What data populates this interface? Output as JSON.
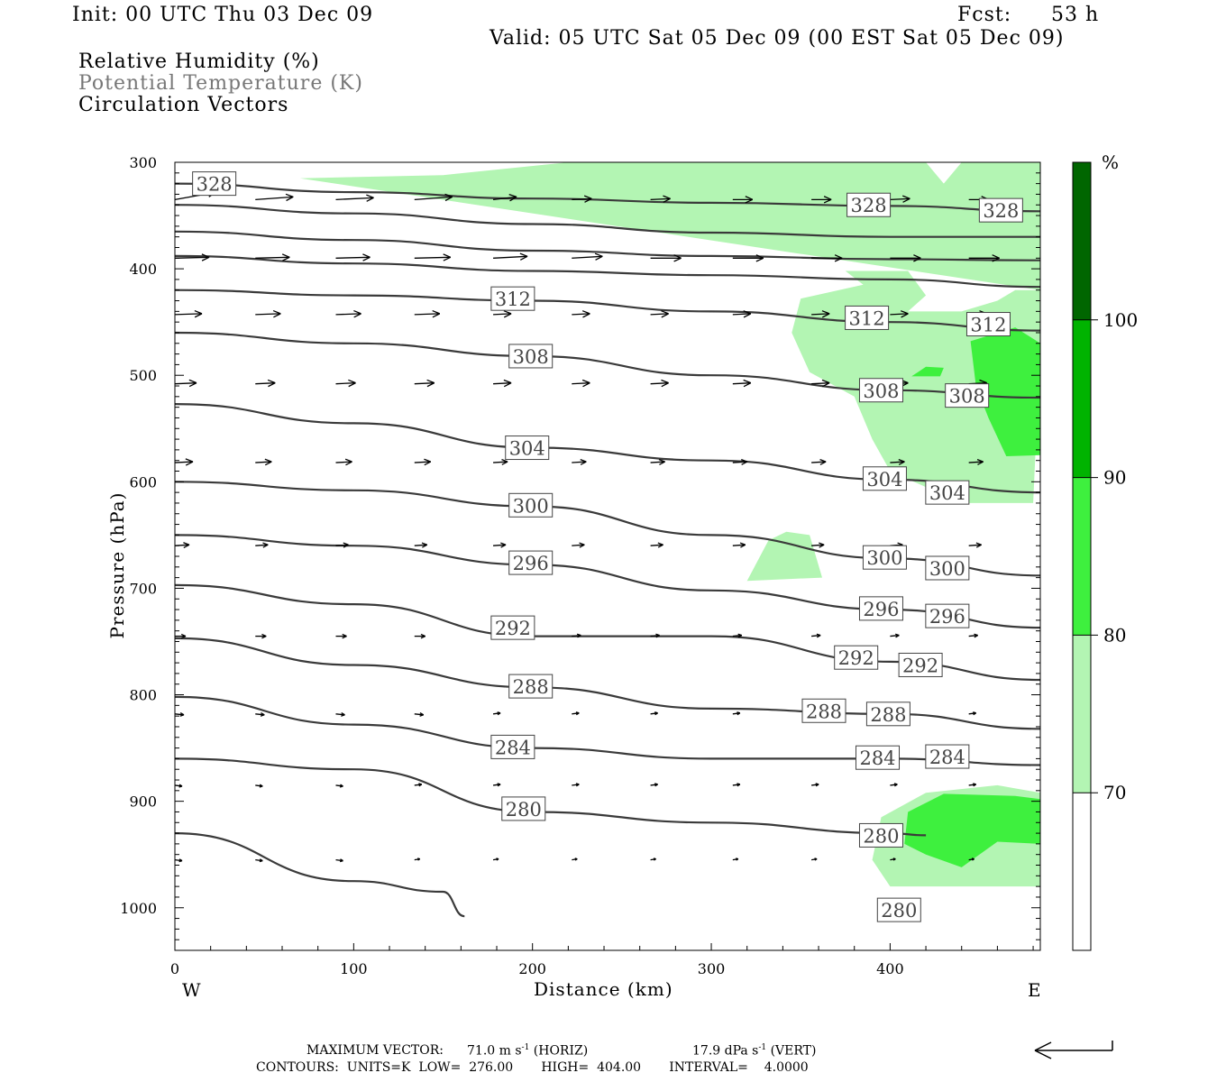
{
  "header": {
    "init": "Init: 00 UTC Thu 03 Dec 09",
    "fcst_label": "Fcst:",
    "fcst_value": "53 h",
    "valid": "Valid: 05 UTC Sat 05 Dec 09 (00 EST Sat 05 Dec 09)",
    "legend": [
      "Relative Humidity (%)",
      "Potential Temperature (K)",
      "Circulation Vectors"
    ]
  },
  "footer": {
    "maxvec_label": "MAXIMUM VECTOR:",
    "maxvec_horiz": "71.0 m s",
    "maxvec_horiz_unit": "(HORIZ)",
    "maxvec_vert": "17.9 dPa s",
    "maxvec_vert_unit": "(VERT)",
    "superscript": "-1",
    "contours": "CONTOURS:  UNITS=K  LOW=  276.00       HIGH=  404.00       INTERVAL=    4.0000"
  },
  "colors": {
    "rh_70": "#b3f5b3",
    "rh_80": "#3ef03e",
    "rh_90": "#00b300",
    "rh_100": "#006600",
    "contour": "#3a3a3a"
  },
  "chart_data": {
    "type": "contour_cross_section",
    "xlabel": "Distance (km)",
    "ylabel": "Pressure (hPa)",
    "xlim": [
      0,
      484
    ],
    "ylim": [
      300,
      1040
    ],
    "x_ticks": [
      0,
      100,
      200,
      300,
      400
    ],
    "y_ticks": [
      300,
      400,
      500,
      600,
      700,
      800,
      900,
      1000
    ],
    "x_end_labels": {
      "left": "W",
      "right": "E"
    },
    "colorbar": {
      "unit": "%",
      "levels": [
        70,
        80,
        90,
        100
      ]
    },
    "theta_contours": [
      {
        "theta": 328,
        "points": [
          [
            0,
            320
          ],
          [
            100,
            328
          ],
          [
            200,
            334
          ],
          [
            300,
            338
          ],
          [
            400,
            341
          ],
          [
            484,
            346
          ]
        ],
        "labels": [
          [
            22,
            320
          ],
          [
            388,
            340
          ],
          [
            462,
            345
          ]
        ]
      },
      {
        "theta": 324,
        "points": [
          [
            0,
            340
          ],
          [
            100,
            348
          ],
          [
            200,
            358
          ],
          [
            300,
            366
          ],
          [
            400,
            370
          ],
          [
            484,
            370
          ]
        ],
        "labels": []
      },
      {
        "theta": 320,
        "points": [
          [
            0,
            365
          ],
          [
            100,
            373
          ],
          [
            200,
            383
          ],
          [
            300,
            388
          ],
          [
            400,
            391
          ],
          [
            484,
            392
          ]
        ],
        "labels": []
      },
      {
        "theta": 316,
        "points": [
          [
            0,
            388
          ],
          [
            100,
            395
          ],
          [
            200,
            402
          ],
          [
            300,
            406
          ],
          [
            400,
            410
          ],
          [
            484,
            417
          ]
        ],
        "labels": []
      },
      {
        "theta": 312,
        "points": [
          [
            0,
            420
          ],
          [
            100,
            425
          ],
          [
            200,
            430
          ],
          [
            300,
            440
          ],
          [
            400,
            450
          ],
          [
            484,
            458
          ]
        ],
        "labels": [
          [
            189,
            428
          ],
          [
            387,
            446
          ],
          [
            455,
            452
          ]
        ]
      },
      {
        "theta": 308,
        "points": [
          [
            0,
            460
          ],
          [
            100,
            470
          ],
          [
            200,
            482
          ],
          [
            300,
            500
          ],
          [
            400,
            514
          ],
          [
            484,
            521
          ]
        ],
        "labels": [
          [
            199,
            482
          ],
          [
            395,
            514
          ],
          [
            443,
            519
          ]
        ]
      },
      {
        "theta": 304,
        "points": [
          [
            0,
            527
          ],
          [
            100,
            545
          ],
          [
            200,
            568
          ],
          [
            300,
            580
          ],
          [
            400,
            598
          ],
          [
            484,
            610
          ]
        ],
        "labels": [
          [
            197,
            568
          ],
          [
            397,
            597
          ],
          [
            432,
            610
          ]
        ]
      },
      {
        "theta": 300,
        "points": [
          [
            0,
            600
          ],
          [
            100,
            608
          ],
          [
            200,
            623
          ],
          [
            300,
            650
          ],
          [
            400,
            672
          ],
          [
            484,
            688
          ]
        ],
        "labels": [
          [
            199,
            622
          ],
          [
            397,
            671
          ],
          [
            432,
            681
          ]
        ]
      },
      {
        "theta": 296,
        "points": [
          [
            0,
            650
          ],
          [
            100,
            660
          ],
          [
            200,
            678
          ],
          [
            300,
            702
          ],
          [
            400,
            720
          ],
          [
            484,
            737
          ]
        ],
        "labels": [
          [
            199,
            676
          ],
          [
            395,
            719
          ],
          [
            432,
            726
          ]
        ]
      },
      {
        "theta": 292,
        "points": [
          [
            0,
            697
          ],
          [
            100,
            715
          ],
          [
            200,
            745
          ],
          [
            300,
            745
          ],
          [
            400,
            769
          ],
          [
            484,
            786
          ]
        ],
        "labels": [
          [
            189,
            737
          ],
          [
            381,
            765
          ],
          [
            417,
            772
          ]
        ]
      },
      {
        "theta": 288,
        "points": [
          [
            0,
            747
          ],
          [
            100,
            772
          ],
          [
            200,
            793
          ],
          [
            300,
            813
          ],
          [
            400,
            818
          ],
          [
            484,
            832
          ]
        ],
        "labels": [
          [
            199,
            792
          ],
          [
            363,
            815
          ],
          [
            399,
            818
          ]
        ]
      },
      {
        "theta": 284,
        "points": [
          [
            0,
            802
          ],
          [
            100,
            828
          ],
          [
            200,
            850
          ],
          [
            300,
            860
          ],
          [
            400,
            860
          ],
          [
            484,
            866
          ]
        ],
        "labels": [
          [
            189,
            849
          ],
          [
            393,
            859
          ],
          [
            432,
            858
          ]
        ]
      },
      {
        "theta": 280,
        "points": [
          [
            0,
            860
          ],
          [
            100,
            870
          ],
          [
            200,
            910
          ],
          [
            300,
            920
          ],
          [
            400,
            930
          ],
          [
            420,
            932
          ]
        ],
        "labels": [
          [
            195,
            907
          ],
          [
            395,
            932
          ],
          [
            405,
            1002
          ]
        ]
      },
      {
        "theta": 276,
        "points": [
          [
            0,
            930
          ],
          [
            100,
            975
          ],
          [
            150,
            985
          ],
          [
            162,
            1008
          ]
        ],
        "labels": []
      }
    ],
    "rh_regions": [
      {
        "level": "70-80",
        "polygon": [
          [
            70,
            315
          ],
          [
            150,
            312
          ],
          [
            220,
            300
          ],
          [
            420,
            300
          ],
          [
            430,
            320
          ],
          [
            440,
            300
          ],
          [
            470,
            300
          ],
          [
            484,
            300
          ],
          [
            484,
            470
          ],
          [
            480,
            620
          ],
          [
            440,
            620
          ],
          [
            400,
            590
          ],
          [
            390,
            560
          ],
          [
            380,
            520
          ],
          [
            355,
            497
          ],
          [
            345,
            460
          ],
          [
            350,
            428
          ],
          [
            385,
            415
          ],
          [
            375,
            402
          ],
          [
            410,
            402
          ],
          [
            420,
            425
          ],
          [
            410,
            440
          ],
          [
            430,
            440
          ],
          [
            440,
            440
          ],
          [
            460,
            430
          ],
          [
            470,
            420
          ],
          [
            484,
            420
          ]
        ]
      },
      {
        "level": "70-80",
        "polygon": [
          [
            320,
            693
          ],
          [
            332,
            655
          ],
          [
            342,
            647
          ],
          [
            355,
            650
          ],
          [
            362,
            690
          ]
        ]
      },
      {
        "level": "70-80",
        "polygon": [
          [
            390,
            955
          ],
          [
            395,
            915
          ],
          [
            420,
            892
          ],
          [
            460,
            885
          ],
          [
            484,
            892
          ],
          [
            484,
            980
          ],
          [
            440,
            980
          ],
          [
            400,
            980
          ]
        ]
      },
      {
        "level": "80-90",
        "polygon": [
          [
            445,
            468
          ],
          [
            470,
            455
          ],
          [
            484,
            470
          ],
          [
            484,
            575
          ],
          [
            465,
            576
          ],
          [
            455,
            540
          ],
          [
            448,
            510
          ]
        ]
      },
      {
        "level": "80-90",
        "polygon": [
          [
            412,
            501
          ],
          [
            420,
            492
          ],
          [
            430,
            493
          ],
          [
            428,
            501
          ]
        ]
      },
      {
        "level": "80-90",
        "polygon": [
          [
            408,
            940
          ],
          [
            410,
            910
          ],
          [
            430,
            893
          ],
          [
            470,
            895
          ],
          [
            484,
            898
          ],
          [
            484,
            940
          ],
          [
            460,
            938
          ],
          [
            440,
            962
          ],
          [
            420,
            950
          ]
        ]
      }
    ],
    "vectors": [
      {
        "p": 335,
        "x": [
          0,
          45,
          90,
          134,
          178,
          222,
          266,
          312,
          356,
          400,
          444
        ],
        "dx": [
          45,
          42,
          42,
          42,
          26,
          22,
          22,
          22,
          22,
          22,
          22
        ],
        "dy": [
          -8,
          -3,
          -2,
          -3,
          -3,
          -1,
          -1,
          0,
          0,
          -1,
          0
        ]
      },
      {
        "p": 390,
        "x": [
          0,
          45,
          90,
          134,
          178,
          222,
          266,
          312,
          356,
          400,
          444
        ],
        "dx": [
          38,
          38,
          38,
          40,
          38,
          34,
          34,
          34,
          34,
          34,
          34
        ],
        "dy": [
          -1,
          -1,
          -1,
          -1,
          -2,
          -2,
          0,
          0,
          0,
          0,
          0
        ]
      },
      {
        "p": 443,
        "x": [
          0,
          45,
          90,
          134,
          178,
          222,
          266,
          312,
          356,
          400,
          444
        ],
        "dx": [
          30,
          28,
          28,
          28,
          20,
          20,
          20,
          20,
          20,
          20,
          20
        ],
        "dy": [
          -1,
          -1,
          -1,
          -1,
          -1,
          -1,
          -1,
          -1,
          -1,
          -1,
          -1
        ]
      },
      {
        "p": 508,
        "x": [
          0,
          45,
          90,
          134,
          178,
          222,
          266,
          312,
          356,
          400,
          444
        ],
        "dx": [
          24,
          22,
          22,
          22,
          20,
          20,
          20,
          20,
          20,
          20,
          20
        ],
        "dy": [
          -1,
          -1,
          -1,
          -1,
          -1,
          -1,
          -1,
          -1,
          -1,
          -1,
          -1
        ]
      },
      {
        "p": 582,
        "x": [
          0,
          45,
          90,
          134,
          178,
          222,
          266,
          312,
          356,
          400,
          444
        ],
        "dx": [
          20,
          18,
          18,
          18,
          16,
          16,
          16,
          16,
          16,
          16,
          16
        ],
        "dy": [
          -1,
          -1,
          -1,
          -1,
          -1,
          -1,
          -1,
          -1,
          -1,
          -1,
          -1
        ]
      },
      {
        "p": 660,
        "x": [
          0,
          45,
          90,
          134,
          178,
          222,
          266,
          312,
          356,
          400,
          444
        ],
        "dx": [
          16,
          14,
          14,
          14,
          14,
          14,
          14,
          14,
          14,
          14,
          14
        ],
        "dy": [
          -1,
          -1,
          -1,
          -1,
          -1,
          -1,
          -1,
          -1,
          -1,
          -1,
          -1
        ]
      },
      {
        "p": 745,
        "x": [
          0,
          45,
          90,
          134,
          178,
          222,
          266,
          312,
          356,
          400,
          444
        ],
        "dx": [
          12,
          12,
          12,
          12,
          10,
          10,
          10,
          10,
          10,
          10,
          10
        ],
        "dy": [
          0,
          0,
          0,
          0,
          -1,
          -1,
          -1,
          -1,
          -1,
          -1,
          -1
        ]
      },
      {
        "p": 818,
        "x": [
          0,
          45,
          90,
          134,
          178,
          222,
          266,
          312,
          356,
          400,
          444
        ],
        "dx": [
          10,
          10,
          10,
          10,
          8,
          8,
          8,
          8,
          8,
          8,
          8
        ],
        "dy": [
          1,
          1,
          1,
          1,
          -1,
          -1,
          -1,
          -1,
          -1,
          -1,
          -1
        ]
      },
      {
        "p": 885,
        "x": [
          0,
          45,
          90,
          134,
          178,
          222,
          266,
          312,
          356,
          400,
          444
        ],
        "dx": [
          8,
          8,
          8,
          8,
          8,
          8,
          8,
          8,
          8,
          8,
          8
        ],
        "dy": [
          1,
          1,
          1,
          -1,
          -1,
          -1,
          -1,
          -1,
          -1,
          -1,
          -1
        ]
      },
      {
        "p": 955,
        "x": [
          0,
          45,
          90,
          134,
          178,
          222,
          266,
          312,
          356,
          400,
          444
        ],
        "dx": [
          8,
          8,
          8,
          6,
          6,
          6,
          6,
          6,
          6,
          6,
          6
        ],
        "dy": [
          1,
          1,
          1,
          -1,
          -1,
          -1,
          -1,
          -1,
          -1,
          -1,
          -1
        ]
      }
    ]
  }
}
